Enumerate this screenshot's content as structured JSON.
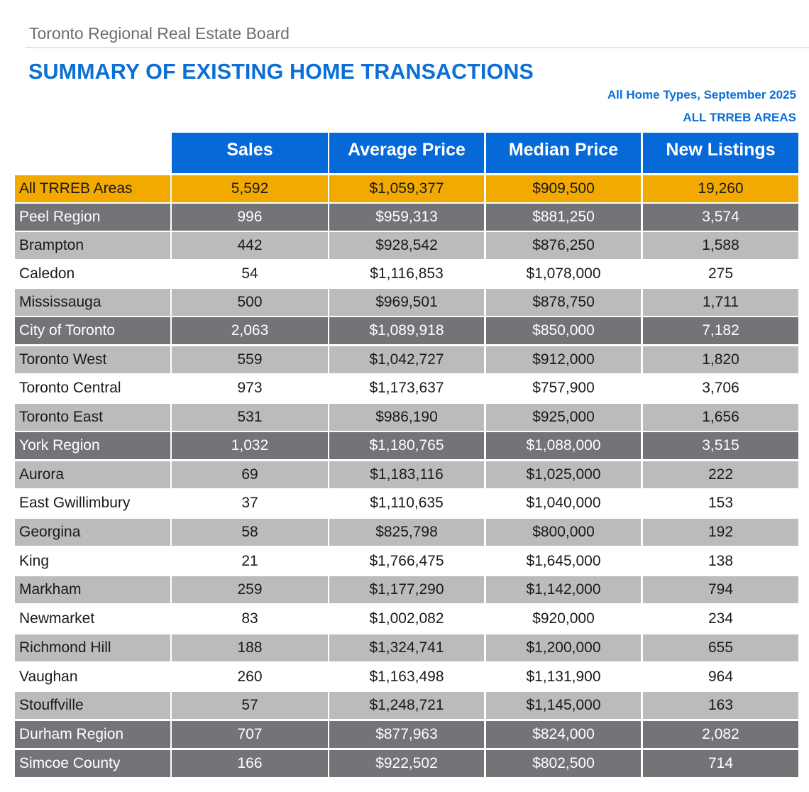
{
  "header": {
    "organization": "Toronto Regional Real Estate Board",
    "title": "SUMMARY OF EXISTING HOME TRANSACTIONS",
    "subtitle_period": "All Home Types, September 2025",
    "subtitle_area": "ALL TRREB AREAS"
  },
  "colors": {
    "title_blue": "#0a6fd6",
    "header_blue": "#0769d8",
    "total_gold": "#f2a900",
    "region_dark": "#737478",
    "alt_light": "#bbbbbb"
  },
  "table": {
    "columns": [
      "",
      "Sales",
      "Average Price",
      "Median Price",
      "New Listings"
    ],
    "rows": [
      {
        "area": "All TRREB Areas",
        "sales": "5,592",
        "avg": "$1,059,377",
        "median": "$909,500",
        "listings": "19,260",
        "style": "gold"
      },
      {
        "area": "Peel Region",
        "sales": "996",
        "avg": "$959,313",
        "median": "$881,250",
        "listings": "3,574",
        "style": "dark"
      },
      {
        "area": "Brampton",
        "sales": "442",
        "avg": "$928,542",
        "median": "$876,250",
        "listings": "1,588",
        "style": "light"
      },
      {
        "area": "Caledon",
        "sales": "54",
        "avg": "$1,116,853",
        "median": "$1,078,000",
        "listings": "275",
        "style": "white"
      },
      {
        "area": "Mississauga",
        "sales": "500",
        "avg": "$969,501",
        "median": "$878,750",
        "listings": "1,711",
        "style": "light"
      },
      {
        "area": "City of Toronto",
        "sales": "2,063",
        "avg": "$1,089,918",
        "median": "$850,000",
        "listings": "7,182",
        "style": "dark"
      },
      {
        "area": "Toronto West",
        "sales": "559",
        "avg": "$1,042,727",
        "median": "$912,000",
        "listings": "1,820",
        "style": "light"
      },
      {
        "area": "Toronto Central",
        "sales": "973",
        "avg": "$1,173,637",
        "median": "$757,900",
        "listings": "3,706",
        "style": "white"
      },
      {
        "area": "Toronto East",
        "sales": "531",
        "avg": "$986,190",
        "median": "$925,000",
        "listings": "1,656",
        "style": "light"
      },
      {
        "area": "York Region",
        "sales": "1,032",
        "avg": "$1,180,765",
        "median": "$1,088,000",
        "listings": "3,515",
        "style": "dark"
      },
      {
        "area": "Aurora",
        "sales": "69",
        "avg": "$1,183,116",
        "median": "$1,025,000",
        "listings": "222",
        "style": "light"
      },
      {
        "area": "East Gwillimbury",
        "sales": "37",
        "avg": "$1,110,635",
        "median": "$1,040,000",
        "listings": "153",
        "style": "white"
      },
      {
        "area": "Georgina",
        "sales": "58",
        "avg": "$825,798",
        "median": "$800,000",
        "listings": "192",
        "style": "light"
      },
      {
        "area": "King",
        "sales": "21",
        "avg": "$1,766,475",
        "median": "$1,645,000",
        "listings": "138",
        "style": "white"
      },
      {
        "area": "Markham",
        "sales": "259",
        "avg": "$1,177,290",
        "median": "$1,142,000",
        "listings": "794",
        "style": "light"
      },
      {
        "area": "Newmarket",
        "sales": "83",
        "avg": "$1,002,082",
        "median": "$920,000",
        "listings": "234",
        "style": "white"
      },
      {
        "area": "Richmond Hill",
        "sales": "188",
        "avg": "$1,324,741",
        "median": "$1,200,000",
        "listings": "655",
        "style": "light"
      },
      {
        "area": "Vaughan",
        "sales": "260",
        "avg": "$1,163,498",
        "median": "$1,131,900",
        "listings": "964",
        "style": "white"
      },
      {
        "area": "Stouffville",
        "sales": "57",
        "avg": "$1,248,721",
        "median": "$1,145,000",
        "listings": "163",
        "style": "light"
      },
      {
        "area": "Durham Region",
        "sales": "707",
        "avg": "$877,963",
        "median": "$824,000",
        "listings": "2,082",
        "style": "dark"
      },
      {
        "area": "Simcoe County",
        "sales": "166",
        "avg": "$922,502",
        "median": "$802,500",
        "listings": "714",
        "style": "dark"
      }
    ]
  }
}
